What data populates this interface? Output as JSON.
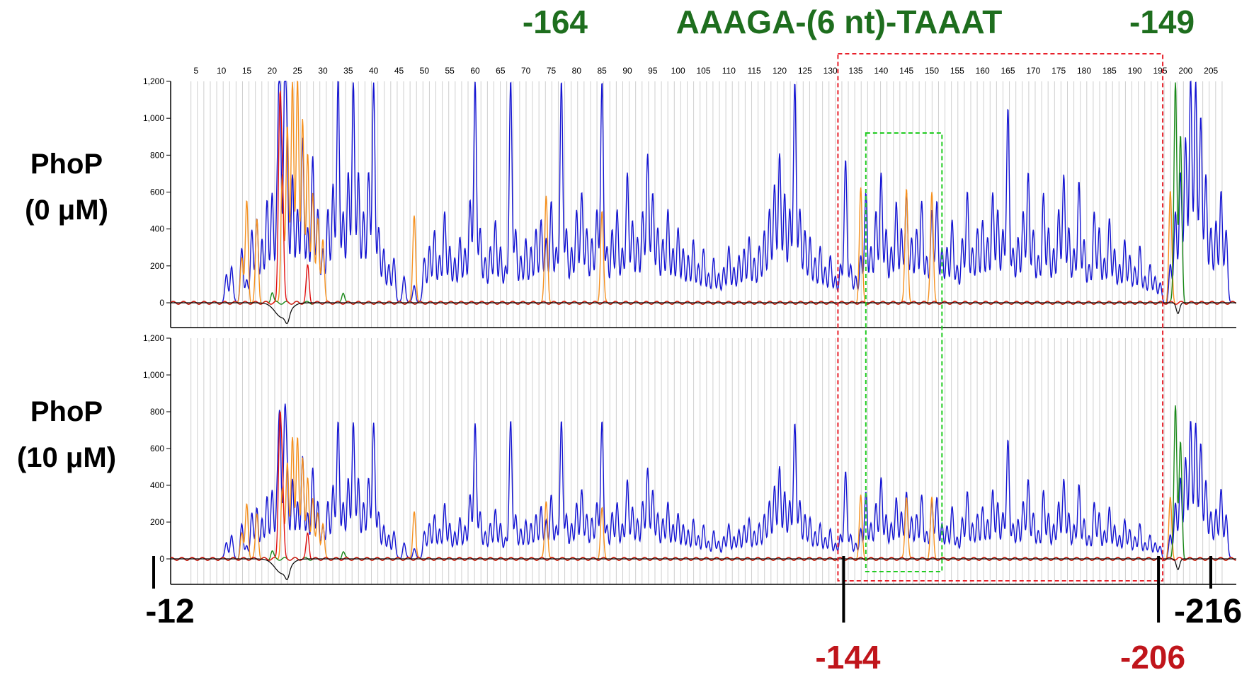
{
  "header": {
    "left_pos": "-164",
    "motif": "AAAGA-(6 nt)-TAAAT",
    "right_pos": "-149",
    "color": "#1e6e1e"
  },
  "panels": [
    {
      "label_line1": "PhoP",
      "label_line2": "(0  μM)",
      "peak_scale": 1.0
    },
    {
      "label_line1": "PhoP",
      "label_line2": "(10  μM)",
      "peak_scale": 0.62
    }
  ],
  "bottom_labels": {
    "left": "-12",
    "right": "-216",
    "region_start": "-144",
    "region_end": "-206",
    "region_color": "#c0151b"
  },
  "colors": {
    "blue": "#1414d2",
    "orange": "#f5901e",
    "green": "#1a8a1a",
    "red": "#e01010",
    "black": "#000000",
    "grid": "#cfcfcf",
    "red_box": "#e8202a",
    "green_box": "#22cc22"
  },
  "chart_data": {
    "type": "line",
    "ylim": [
      -140,
      1200
    ],
    "yticks": [
      "1,200",
      "1,000",
      "800",
      "600",
      "400",
      "200",
      "0"
    ],
    "ytick_values": [
      1200,
      1000,
      800,
      600,
      400,
      200,
      0
    ],
    "xtick_labels": [
      "5",
      "10",
      "15",
      "20",
      "25",
      "30",
      "35",
      "40",
      "45",
      "50",
      "55",
      "60",
      "65",
      "70",
      "75",
      "80",
      "85",
      "90",
      "95",
      "100",
      "105",
      "110",
      "115",
      "120",
      "125",
      "130",
      "135",
      "140",
      "145",
      "150",
      "155",
      "160",
      "165",
      "170",
      "175",
      "180",
      "185",
      "190",
      "195",
      "200",
      "205"
    ],
    "xtick_values": [
      5,
      10,
      15,
      20,
      25,
      30,
      35,
      40,
      45,
      50,
      55,
      60,
      65,
      70,
      75,
      80,
      85,
      90,
      95,
      100,
      105,
      110,
      115,
      120,
      125,
      130,
      135,
      140,
      145,
      150,
      155,
      160,
      165,
      170,
      175,
      180,
      185,
      190,
      195,
      200,
      205
    ],
    "xlim": [
      0,
      210
    ],
    "red_region": [
      131.5,
      195.5
    ],
    "green_region": [
      137,
      152
    ],
    "series": [
      {
        "color": "blue",
        "peaks": [
          [
            11,
            150
          ],
          [
            12,
            200
          ],
          [
            14,
            300
          ],
          [
            15,
            120
          ],
          [
            16,
            400
          ],
          [
            17,
            450
          ],
          [
            18,
            350
          ],
          [
            19,
            550
          ],
          [
            20,
            600
          ],
          [
            21,
            500
          ],
          [
            21.5,
            1200
          ],
          [
            22.5,
            1200
          ],
          [
            23,
            600
          ],
          [
            24,
            700
          ],
          [
            25,
            500
          ],
          [
            26,
            900
          ],
          [
            27,
            400
          ],
          [
            28,
            800
          ],
          [
            29,
            500
          ],
          [
            30,
            300
          ],
          [
            31,
            500
          ],
          [
            32,
            650
          ],
          [
            33,
            1200
          ],
          [
            34,
            500
          ],
          [
            35,
            700
          ],
          [
            36,
            1200
          ],
          [
            37,
            700
          ],
          [
            38,
            500
          ],
          [
            39,
            700
          ],
          [
            40,
            1200
          ],
          [
            41,
            400
          ],
          [
            42,
            300
          ],
          [
            43,
            200
          ],
          [
            44,
            250
          ],
          [
            46,
            150
          ],
          [
            48,
            100
          ],
          [
            50,
            250
          ],
          [
            51,
            300
          ],
          [
            52,
            400
          ],
          [
            53,
            250
          ],
          [
            54,
            500
          ],
          [
            55,
            300
          ],
          [
            56,
            250
          ],
          [
            57,
            350
          ],
          [
            58,
            300
          ],
          [
            59,
            550
          ],
          [
            60,
            1200
          ],
          [
            61,
            400
          ],
          [
            62,
            250
          ],
          [
            63,
            300
          ],
          [
            64,
            450
          ],
          [
            65,
            300
          ],
          [
            66,
            200
          ],
          [
            67,
            1200
          ],
          [
            68,
            400
          ],
          [
            69,
            250
          ],
          [
            70,
            350
          ],
          [
            71,
            300
          ],
          [
            72,
            400
          ],
          [
            73,
            450
          ],
          [
            74,
            350
          ],
          [
            75,
            550
          ],
          [
            76,
            300
          ],
          [
            77,
            1200
          ],
          [
            78,
            400
          ],
          [
            79,
            300
          ],
          [
            80,
            500
          ],
          [
            81,
            600
          ],
          [
            82,
            400
          ],
          [
            83,
            350
          ],
          [
            84,
            500
          ],
          [
            85,
            1200
          ],
          [
            86,
            300
          ],
          [
            87,
            400
          ],
          [
            88,
            500
          ],
          [
            89,
            300
          ],
          [
            90,
            700
          ],
          [
            91,
            450
          ],
          [
            92,
            350
          ],
          [
            93,
            500
          ],
          [
            94,
            800
          ],
          [
            95,
            600
          ],
          [
            96,
            400
          ],
          [
            97,
            350
          ],
          [
            98,
            500
          ],
          [
            99,
            300
          ],
          [
            100,
            400
          ],
          [
            101,
            300
          ],
          [
            102,
            250
          ],
          [
            103,
            350
          ],
          [
            104,
            200
          ],
          [
            105,
            300
          ],
          [
            106,
            150
          ],
          [
            107,
            250
          ],
          [
            108,
            150
          ],
          [
            109,
            200
          ],
          [
            110,
            300
          ],
          [
            111,
            200
          ],
          [
            112,
            250
          ],
          [
            113,
            300
          ],
          [
            114,
            350
          ],
          [
            115,
            250
          ],
          [
            116,
            300
          ],
          [
            117,
            400
          ],
          [
            118,
            500
          ],
          [
            119,
            650
          ],
          [
            120,
            800
          ],
          [
            121,
            600
          ],
          [
            122,
            500
          ],
          [
            123,
            1200
          ],
          [
            124,
            500
          ],
          [
            125,
            400
          ],
          [
            126,
            350
          ],
          [
            127,
            250
          ],
          [
            128,
            300
          ],
          [
            129,
            200
          ],
          [
            130,
            250
          ],
          [
            131,
            150
          ],
          [
            132,
            200
          ],
          [
            133,
            780
          ],
          [
            134,
            200
          ],
          [
            135,
            150
          ],
          [
            136,
            250
          ],
          [
            137,
            600
          ],
          [
            138,
            300
          ],
          [
            139,
            500
          ],
          [
            140,
            700
          ],
          [
            141,
            400
          ],
          [
            142,
            300
          ],
          [
            143,
            550
          ],
          [
            144,
            400
          ],
          [
            145,
            600
          ],
          [
            146,
            350
          ],
          [
            147,
            400
          ],
          [
            148,
            550
          ],
          [
            149,
            250
          ],
          [
            150,
            500
          ],
          [
            151,
            550
          ],
          [
            152,
            300
          ],
          [
            153,
            300
          ],
          [
            154,
            450
          ],
          [
            155,
            200
          ],
          [
            156,
            350
          ],
          [
            157,
            600
          ],
          [
            158,
            300
          ],
          [
            159,
            400
          ],
          [
            160,
            450
          ],
          [
            161,
            350
          ],
          [
            162,
            600
          ],
          [
            163,
            500
          ],
          [
            164,
            400
          ],
          [
            165,
            1050
          ],
          [
            166,
            300
          ],
          [
            167,
            350
          ],
          [
            168,
            500
          ],
          [
            169,
            700
          ],
          [
            170,
            400
          ],
          [
            171,
            250
          ],
          [
            172,
            600
          ],
          [
            173,
            400
          ],
          [
            174,
            300
          ],
          [
            175,
            500
          ],
          [
            176,
            700
          ],
          [
            177,
            400
          ],
          [
            178,
            300
          ],
          [
            179,
            650
          ],
          [
            180,
            350
          ],
          [
            181,
            200
          ],
          [
            182,
            500
          ],
          [
            183,
            400
          ],
          [
            184,
            250
          ],
          [
            185,
            450
          ],
          [
            186,
            300
          ],
          [
            187,
            200
          ],
          [
            188,
            350
          ],
          [
            189,
            250
          ],
          [
            190,
            200
          ],
          [
            191,
            300
          ],
          [
            192,
            150
          ],
          [
            193,
            200
          ],
          [
            194,
            150
          ],
          [
            195,
            100
          ],
          [
            197,
            200
          ],
          [
            198,
            500
          ],
          [
            199,
            700
          ],
          [
            200,
            900
          ],
          [
            201,
            1200
          ],
          [
            202,
            1200
          ],
          [
            203,
            1000
          ],
          [
            204,
            700
          ],
          [
            205,
            400
          ],
          [
            206,
            450
          ],
          [
            207,
            600
          ],
          [
            208,
            400
          ]
        ]
      },
      {
        "color": "orange",
        "peaks": [
          [
            14,
            250
          ],
          [
            15,
            550
          ],
          [
            17,
            450
          ],
          [
            22,
            700
          ],
          [
            23,
            950
          ],
          [
            24,
            1200
          ],
          [
            25,
            1200
          ],
          [
            26,
            1000
          ],
          [
            27,
            800
          ],
          [
            28,
            600
          ],
          [
            29,
            450
          ],
          [
            30,
            350
          ],
          [
            48,
            480
          ],
          [
            74,
            580
          ],
          [
            85,
            500
          ],
          [
            136,
            620
          ],
          [
            145,
            620
          ],
          [
            150,
            600
          ],
          [
            197,
            600
          ]
        ]
      },
      {
        "color": "green",
        "peaks": [
          [
            20,
            60
          ],
          [
            34,
            60
          ],
          [
            198,
            1200
          ],
          [
            199,
            900
          ]
        ]
      },
      {
        "color": "red",
        "peaks": [
          [
            21.5,
            1000
          ],
          [
            22,
            600
          ],
          [
            27,
            200
          ]
        ]
      }
    ]
  }
}
